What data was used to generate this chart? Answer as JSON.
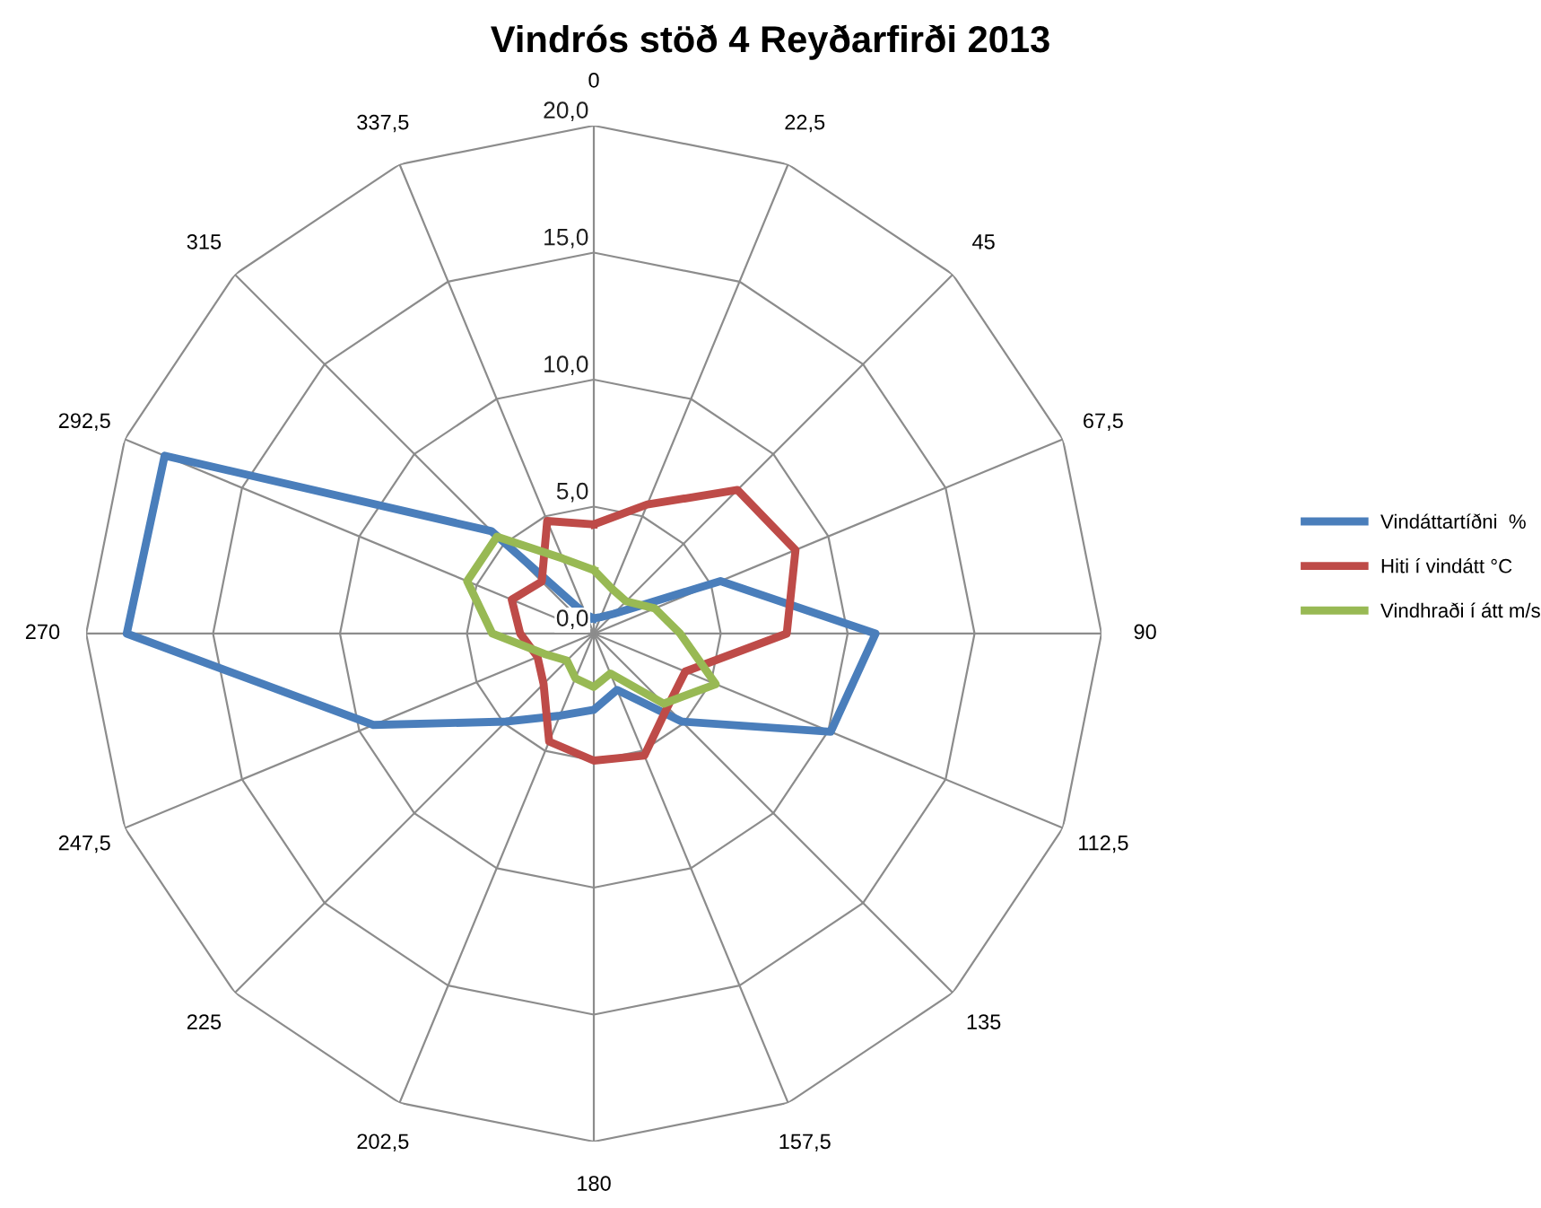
{
  "chart_data": {
    "type": "radar",
    "title": "Vindrós stöð 4 Reyðarfirði 2013",
    "categories": [
      "0",
      "22,5",
      "45",
      "67,5",
      "90",
      "112,5",
      "135",
      "157,5",
      "180",
      "202,5",
      "225",
      "247,5",
      "270",
      "292,5",
      "315",
      "337,5"
    ],
    "ylim": [
      0,
      20
    ],
    "yticks": [
      {
        "value": 0,
        "label": "0,0"
      },
      {
        "value": 5,
        "label": "5,0"
      },
      {
        "value": 10,
        "label": "10,0"
      },
      {
        "value": 15,
        "label": "15,0"
      },
      {
        "value": 20,
        "label": "20,0"
      }
    ],
    "grid": true,
    "legend": "right",
    "marker": "none",
    "line_style": "solid",
    "series": [
      {
        "name": "Vindáttartíðni  %",
        "color": "#4a7ebb",
        "values": [
          0.6,
          0.7,
          1.1,
          5.4,
          11.1,
          10.1,
          4.9,
          2.4,
          3.0,
          3.5,
          4.9,
          9.4,
          18.4,
          18.3,
          5.7,
          0.8
        ]
      },
      {
        "name": "Hiti í vindátt °C",
        "color": "#be4b48",
        "values": [
          4.3,
          5.5,
          8.0,
          8.6,
          7.6,
          3.9,
          4.1,
          5.2,
          5.0,
          4.6,
          2.8,
          2.4,
          2.9,
          3.5,
          2.9,
          4.8
        ]
      },
      {
        "name": "Vindhraði í átt m/s",
        "color": "#98b954",
        "values": [
          2.5,
          1.9,
          1.8,
          2.6,
          3.4,
          5.2,
          3.9,
          1.7,
          2.1,
          1.9,
          1.5,
          2.1,
          4.0,
          5.4,
          5.4,
          3.2
        ]
      }
    ]
  }
}
